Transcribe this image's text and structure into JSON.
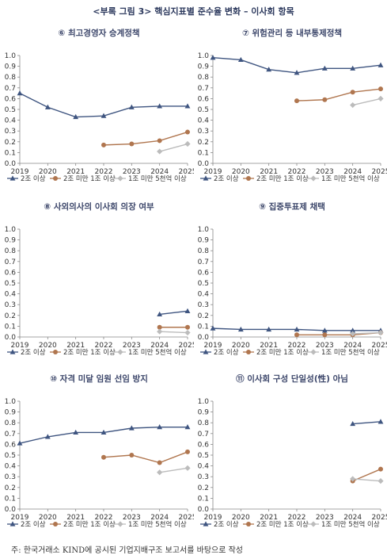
{
  "title": "<부록 그림 3> 핵심지표별 준수율 변화 – 이사회 항목",
  "footnote": "주: 한국거래소 KIND에 공시된 기업지배구조 보고서를 바탕으로 작성",
  "colors": {
    "s1": "#3f5580",
    "s2": "#b0764f",
    "s3": "#bcbcbc"
  },
  "chart_data": [
    {
      "type": "line",
      "title": "⑥ 최고경영자 승계정책",
      "x": [
        "2019",
        "2020",
        "2021",
        "2022",
        "2023",
        "2024",
        "2025"
      ],
      "ylim": [
        0,
        1.0
      ],
      "yticks": [
        "0.0",
        "0.1",
        "0.2",
        "0.3",
        "0.4",
        "0.5",
        "0.6",
        "0.7",
        "0.8",
        "0.9",
        "1.0"
      ],
      "series": [
        {
          "name": "2조 이상",
          "values": [
            0.65,
            0.52,
            0.43,
            0.44,
            0.52,
            0.53,
            0.53
          ]
        },
        {
          "name": "2조 미만 1조 이상",
          "values": [
            null,
            null,
            null,
            0.17,
            0.18,
            0.21,
            0.29
          ]
        },
        {
          "name": "1조 미만 5천억 이상",
          "values": [
            null,
            null,
            null,
            null,
            null,
            0.11,
            0.18
          ]
        }
      ]
    },
    {
      "type": "line",
      "title": "⑦ 위험관리 등 내부통제정책",
      "x": [
        "2019",
        "2020",
        "2021",
        "2022",
        "2023",
        "2024",
        "2025"
      ],
      "ylim": [
        0,
        1.0
      ],
      "yticks": [
        "0.0",
        "0.1",
        "0.2",
        "0.3",
        "0.4",
        "0.5",
        "0.6",
        "0.7",
        "0.8",
        "0.9",
        "1.0"
      ],
      "series": [
        {
          "name": "2조 이상",
          "values": [
            0.98,
            0.96,
            0.87,
            0.84,
            0.88,
            0.88,
            0.91
          ]
        },
        {
          "name": "2조 미만 1조 이상",
          "values": [
            null,
            null,
            null,
            0.58,
            0.59,
            0.66,
            0.69
          ]
        },
        {
          "name": "1조 미만 5천억 이상",
          "values": [
            null,
            null,
            null,
            null,
            null,
            0.54,
            0.6
          ]
        }
      ]
    },
    {
      "type": "line",
      "title": "⑧ 사외의사의 이사회 의장 여부",
      "x": [
        "2019",
        "2020",
        "2021",
        "2022",
        "2023",
        "2024",
        "2025"
      ],
      "ylim": [
        0,
        1.0
      ],
      "yticks": [
        "0.0",
        "0.1",
        "0.2",
        "0.3",
        "0.4",
        "0.5",
        "0.6",
        "0.7",
        "0.8",
        "0.9",
        "1.0"
      ],
      "series": [
        {
          "name": "2조 이상",
          "values": [
            null,
            null,
            null,
            null,
            null,
            0.21,
            0.24
          ]
        },
        {
          "name": "2조 미만 1조 이상",
          "values": [
            null,
            null,
            null,
            null,
            null,
            0.09,
            0.09
          ]
        },
        {
          "name": "1조 미만 5천억 이상",
          "values": [
            null,
            null,
            null,
            null,
            null,
            0.05,
            0.04
          ]
        }
      ]
    },
    {
      "type": "line",
      "title": "⑨ 집중투표제 채택",
      "x": [
        "2019",
        "2020",
        "2021",
        "2022",
        "2023",
        "2024",
        "2025"
      ],
      "ylim": [
        0,
        1.0
      ],
      "yticks": [
        "0.0",
        "0.1",
        "0.2",
        "0.3",
        "0.4",
        "0.5",
        "0.6",
        "0.7",
        "0.8",
        "0.9",
        "1.0"
      ],
      "series": [
        {
          "name": "2조 이상",
          "values": [
            0.08,
            0.07,
            0.07,
            0.07,
            0.06,
            0.06,
            0.06
          ]
        },
        {
          "name": "2조 미만 1조 이상",
          "values": [
            null,
            null,
            null,
            0.02,
            0.02,
            0.02,
            0.04
          ]
        },
        {
          "name": "1조 미만 5천억 이상",
          "values": [
            null,
            null,
            null,
            null,
            null,
            0.03,
            0.04
          ]
        }
      ]
    },
    {
      "type": "line",
      "title": "⑩ 자격 미달 임원 선임 방지",
      "x": [
        "2019",
        "2020",
        "2021",
        "2022",
        "2023",
        "2024",
        "2025"
      ],
      "ylim": [
        0,
        1.0
      ],
      "yticks": [
        "0.0",
        "0.1",
        "0.2",
        "0.3",
        "0.4",
        "0.5",
        "0.6",
        "0.7",
        "0.8",
        "0.9",
        "1.0"
      ],
      "series": [
        {
          "name": "2조 이상",
          "values": [
            0.61,
            0.67,
            0.71,
            0.71,
            0.75,
            0.76,
            0.76
          ]
        },
        {
          "name": "2조 미만 1조 이상",
          "values": [
            null,
            null,
            null,
            0.48,
            0.5,
            0.43,
            0.53
          ]
        },
        {
          "name": "1조 미만 5천억 이상",
          "values": [
            null,
            null,
            null,
            null,
            null,
            0.34,
            0.38
          ]
        }
      ]
    },
    {
      "type": "line",
      "title": "⑪ 이사회 구성 단일성(性) 아님",
      "x": [
        "2019",
        "2020",
        "2021",
        "2022",
        "2023",
        "2024",
        "2025"
      ],
      "ylim": [
        0,
        1.0
      ],
      "yticks": [
        "0.0",
        "0.1",
        "0.2",
        "0.3",
        "0.4",
        "0.5",
        "0.6",
        "0.7",
        "0.8",
        "0.9",
        "1.0"
      ],
      "series": [
        {
          "name": "2조 이상",
          "values": [
            null,
            null,
            null,
            null,
            null,
            0.79,
            0.81
          ]
        },
        {
          "name": "2조 미만 1조 이상",
          "values": [
            null,
            null,
            null,
            null,
            null,
            0.26,
            0.37
          ]
        },
        {
          "name": "1조 미만 5천억 이상",
          "values": [
            null,
            null,
            null,
            null,
            null,
            0.28,
            0.26
          ]
        }
      ]
    }
  ]
}
